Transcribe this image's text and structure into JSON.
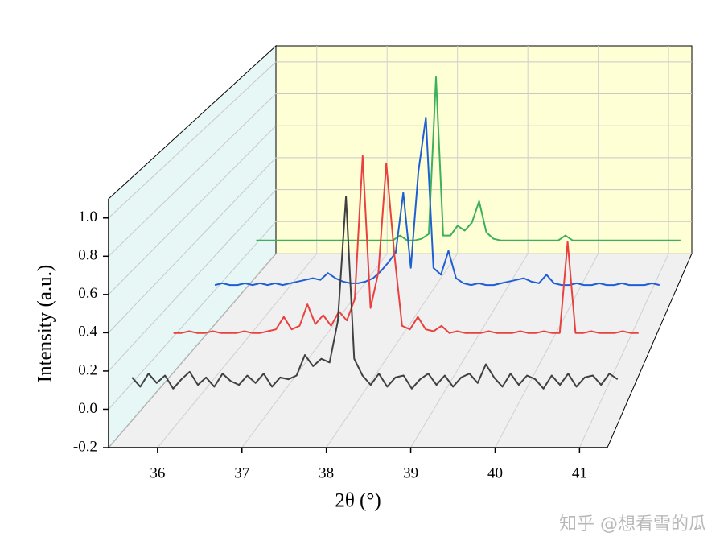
{
  "chart_data": {
    "type": "waterfall3d",
    "xlabel": "2θ (°)",
    "ylabel": "Intensity (a.u.)",
    "xlim": [
      35.42,
      41.33
    ],
    "ylim": [
      -0.2,
      1.1
    ],
    "xticks": [
      36,
      37,
      38,
      39,
      40,
      41
    ],
    "yticks": [
      -0.2,
      {
        "value": 0,
        "label": "0.0"
      },
      0.2,
      0.4,
      0.6,
      0.8,
      {
        "value": 1,
        "label": "1.0"
      }
    ],
    "grid": true,
    "x": [
      35.4,
      35.5,
      35.6,
      35.7,
      35.8,
      35.9,
      36.0,
      36.1,
      36.2,
      36.3,
      36.4,
      36.5,
      36.6,
      36.7,
      36.8,
      36.9,
      37.0,
      37.1,
      37.2,
      37.3,
      37.4,
      37.5,
      37.6,
      37.7,
      37.8,
      37.9,
      38.0,
      38.1,
      38.2,
      38.3,
      38.4,
      38.5,
      38.6,
      38.7,
      38.8,
      38.9,
      39.0,
      39.1,
      39.2,
      39.3,
      39.4,
      39.5,
      39.6,
      39.7,
      39.8,
      39.9,
      40.0,
      40.1,
      40.2,
      40.3,
      40.4,
      40.5,
      40.6,
      40.7,
      40.8,
      40.9,
      41.0,
      41.1,
      41.2,
      41.3
    ],
    "series": [
      {
        "color": "#404040",
        "values": [
          0.02,
          -0.03,
          0.04,
          -0.01,
          0.03,
          -0.04,
          0.01,
          0.05,
          -0.02,
          0.02,
          -0.03,
          0.04,
          0,
          -0.02,
          0.03,
          -0.01,
          0.04,
          -0.03,
          0.02,
          0.01,
          0.03,
          0.14,
          0.08,
          0.12,
          0.1,
          0.32,
          0.99,
          0.12,
          0.03,
          -0.02,
          0.04,
          -0.03,
          0.02,
          0.03,
          -0.04,
          0.01,
          0.04,
          -0.02,
          0.03,
          -0.03,
          0.02,
          0.04,
          -0.01,
          0.09,
          0.02,
          -0.03,
          0.04,
          -0.02,
          0.03,
          0.01,
          -0.04,
          0.03,
          -0.02,
          0.04,
          -0.03,
          0.02,
          0.03,
          -0.02,
          0.04,
          0.01
        ]
      },
      {
        "color": "#e8413f",
        "values": [
          0.01,
          0.01,
          0.02,
          0.01,
          0.01,
          0.02,
          0.01,
          0.01,
          0.01,
          0.02,
          0.01,
          0.01,
          0.02,
          0.03,
          0.1,
          0.03,
          0.05,
          0.17,
          0.06,
          0.11,
          0.05,
          0.13,
          0.08,
          0.2,
          1.0,
          0.15,
          0.35,
          0.96,
          0.46,
          0.05,
          0.03,
          0.1,
          0.03,
          0.02,
          0.05,
          0.01,
          0.02,
          0.01,
          0.01,
          0.01,
          0.02,
          0.01,
          0.01,
          0.01,
          0.02,
          0.01,
          0.01,
          0.02,
          0.01,
          0.01,
          0.52,
          0.01,
          0.01,
          0.02,
          0.01,
          0.01,
          0.01,
          0.02,
          0.01,
          0.01
        ]
      },
      {
        "color": "#1f5fd6",
        "values": [
          0.02,
          0.03,
          0.02,
          0.02,
          0.03,
          0.02,
          0.03,
          0.02,
          0.03,
          0.02,
          0.03,
          0.04,
          0.05,
          0.06,
          0.05,
          0.09,
          0.06,
          0.04,
          0.03,
          0.03,
          0.04,
          0.06,
          0.1,
          0.15,
          0.21,
          0.56,
          0.12,
          0.68,
          1.0,
          0.12,
          0.08,
          0.22,
          0.06,
          0.03,
          0.02,
          0.03,
          0.02,
          0.02,
          0.03,
          0.04,
          0.05,
          0.06,
          0.04,
          0.03,
          0.08,
          0.03,
          0.02,
          0.02,
          0.03,
          0.02,
          0.02,
          0.03,
          0.02,
          0.02,
          0.03,
          0.02,
          0.02,
          0.02,
          0.03,
          0.02
        ]
      },
      {
        "color": "#3cb05a",
        "values": [
          0.01,
          0.01,
          0.01,
          0.01,
          0.01,
          0.01,
          0.01,
          0.01,
          0.01,
          0.01,
          0.01,
          0.01,
          0.01,
          0.01,
          0.01,
          0.01,
          0.01,
          0.01,
          0.01,
          0.01,
          0.04,
          0.01,
          0.01,
          0.02,
          0.05,
          1.01,
          0.04,
          0.04,
          0.1,
          0.07,
          0.12,
          0.25,
          0.06,
          0.02,
          0.01,
          0.01,
          0.01,
          0.01,
          0.01,
          0.01,
          0.01,
          0.01,
          0.01,
          0.04,
          0.01,
          0.01,
          0.01,
          0.01,
          0.01,
          0.01,
          0.01,
          0.01,
          0.01,
          0.01,
          0.01,
          0.01,
          0.01,
          0.01,
          0.01,
          0.01
        ]
      }
    ]
  },
  "watermark": "知乎 @想看雪的瓜"
}
